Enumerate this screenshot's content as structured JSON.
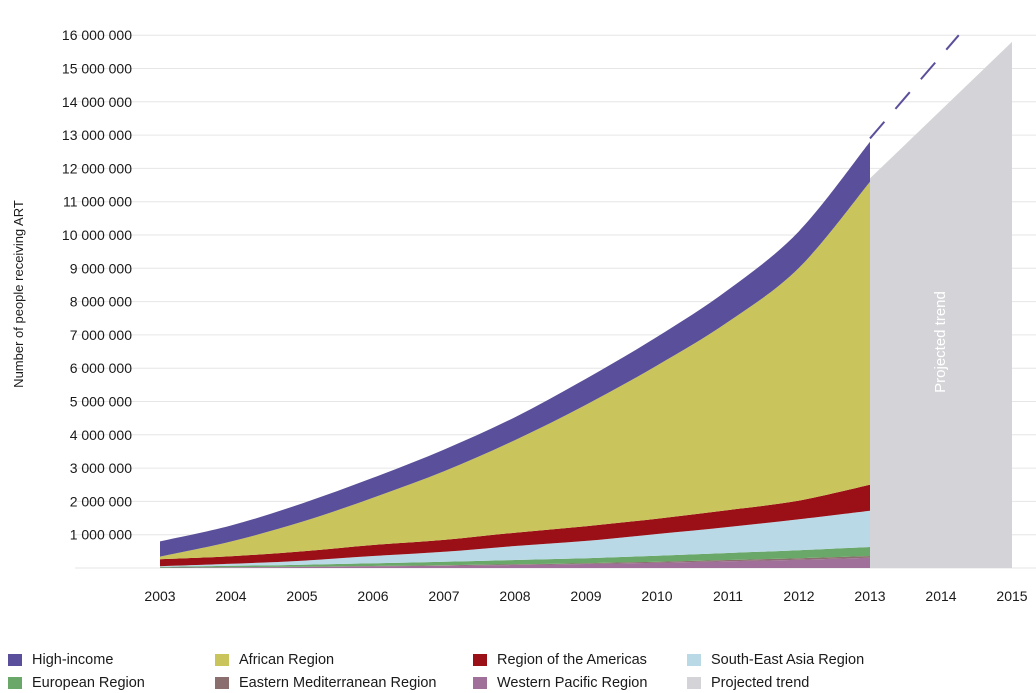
{
  "chart_data": {
    "type": "area",
    "stacked": true,
    "title": "",
    "xlabel": "",
    "ylabel": "Number of people receiving ART",
    "ylim": [
      0,
      16000000
    ],
    "yticks": [
      1000000,
      2000000,
      3000000,
      4000000,
      5000000,
      6000000,
      7000000,
      8000000,
      9000000,
      10000000,
      11000000,
      12000000,
      13000000,
      14000000,
      15000000,
      16000000
    ],
    "ytick_labels": [
      "1 000 000",
      "2 000 000",
      "3 000 000",
      "4 000 000",
      "5 000 000",
      "6 000 000",
      "7 000 000",
      "8 000 000",
      "9 000 000",
      "10 000 000",
      "11 000 000",
      "12 000 000",
      "13 000 000",
      "14 000 000",
      "15 000 000",
      "16 000 000"
    ],
    "x_tick_labels": [
      "2003",
      "2004",
      "2005",
      "2006",
      "2007",
      "2008",
      "2009",
      "2010",
      "2011",
      "2012",
      "2013",
      "2014",
      "2015"
    ],
    "grid": true,
    "legend_position": "bottom",
    "x": [
      2003,
      2004,
      2005,
      2006,
      2007,
      2008,
      2009,
      2010,
      2011,
      2012,
      2013
    ],
    "series": [
      {
        "name": "Western Pacific Region",
        "color": "#a0709a",
        "values": [
          10000,
          20000,
          30000,
          50000,
          70000,
          90000,
          120000,
          160000,
          200000,
          250000,
          310000
        ]
      },
      {
        "name": "Eastern Mediterranean Region",
        "color": "#8b6e6e",
        "values": [
          3000,
          5000,
          8000,
          10000,
          15000,
          20000,
          25000,
          30000,
          40000,
          45000,
          50000
        ]
      },
      {
        "name": "European Region",
        "color": "#6aa86a",
        "values": [
          20000,
          40000,
          60000,
          80000,
          100000,
          130000,
          150000,
          180000,
          210000,
          240000,
          270000
        ]
      },
      {
        "name": "South-East Asia Region",
        "color": "#b9d9e6",
        "values": [
          20000,
          60000,
          120000,
          220000,
          300000,
          420000,
          520000,
          650000,
          780000,
          930000,
          1090000
        ]
      },
      {
        "name": "Region of the Americas",
        "color": "#9b0f16",
        "values": [
          210000,
          230000,
          280000,
          330000,
          360000,
          400000,
          440000,
          460000,
          510000,
          560000,
          780000
        ]
      },
      {
        "name": "African Region",
        "color": "#c9c55c",
        "values": [
          80000,
          440000,
          890000,
          1420000,
          2060000,
          2780000,
          3650000,
          4600000,
          5650000,
          6990000,
          9100000
        ]
      },
      {
        "name": "High-income",
        "color": "#5a4f9a",
        "values": [
          457000,
          480000,
          550000,
          600000,
          650000,
          690000,
          780000,
          860000,
          960000,
          1100000,
          1200000
        ]
      }
    ],
    "projection": {
      "name": "Projected trend",
      "color": "#d4d4d8",
      "label": "Projected trend",
      "x": [
        2013,
        2015
      ],
      "lower_values": [
        0,
        0
      ],
      "upper_values": [
        11700000,
        15800000
      ],
      "dashed_trend_values": [
        12900000,
        16000000
      ]
    }
  },
  "legend": {
    "items": [
      {
        "label": "High-income",
        "color": "#5a4f9a"
      },
      {
        "label": "African Region",
        "color": "#c9c55c"
      },
      {
        "label": "Region of the Americas",
        "color": "#9b0f16"
      },
      {
        "label": "South-East Asia Region",
        "color": "#b9d9e6"
      },
      {
        "label": "European Region",
        "color": "#6aa86a"
      },
      {
        "label": "Eastern Mediterranean Region",
        "color": "#8b6e6e"
      },
      {
        "label": "Western Pacific Region",
        "color": "#a0709a"
      },
      {
        "label": "Projected trend",
        "color": "#d4d4d8"
      }
    ]
  }
}
